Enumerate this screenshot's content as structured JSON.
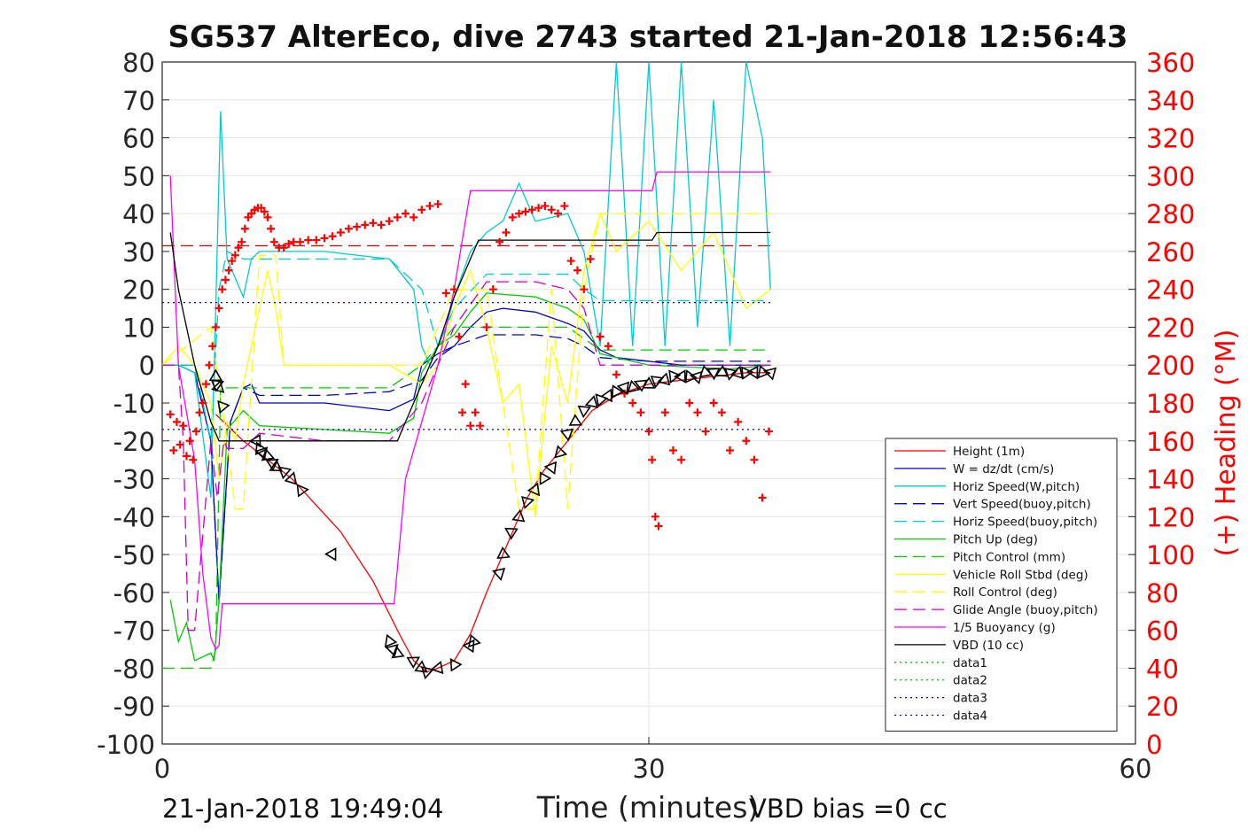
{
  "chart_data": {
    "type": "line",
    "title": "SG537 AlterEco, dive 2743 started 21-Jan-2018 12:56:43",
    "xlabel": "Time (minutes)",
    "ylabel": "",
    "y2label": "(+) Heading (°M)",
    "xlim": [
      0,
      60
    ],
    "ylim": [
      -100,
      80
    ],
    "y2lim": [
      0,
      360
    ],
    "xticks": [
      "0",
      "30",
      "60"
    ],
    "yticks": [
      "80",
      "70",
      "60",
      "50",
      "40",
      "30",
      "20",
      "10",
      "0",
      "-10",
      "-20",
      "-30",
      "-40",
      "-50",
      "-60",
      "-70",
      "-80",
      "-90",
      "-100"
    ],
    "y2ticks": [
      "360",
      "340",
      "320",
      "300",
      "280",
      "260",
      "240",
      "220",
      "200",
      "180",
      "160",
      "140",
      "120",
      "100",
      "80",
      "60",
      "40",
      "20",
      "0"
    ],
    "grid": true,
    "legend_position": "bottom-right",
    "series": [
      {
        "name": "Height (1m)",
        "color": "#ff0000",
        "dash": "solid",
        "x": [
          3.3,
          5,
          8,
          11,
          13,
          14.5,
          15.5,
          16.3,
          17,
          18,
          19,
          20,
          21.5,
          22.5,
          23.5,
          25,
          26.5,
          28,
          30,
          32,
          34,
          36,
          37.5
        ],
        "y": [
          -13,
          -20,
          -30,
          -44,
          -57,
          -70,
          -78,
          -81,
          -80,
          -78,
          -71,
          -60,
          -45,
          -35,
          -28,
          -20,
          -12,
          -8,
          -5,
          -4,
          -3,
          -2,
          -2
        ]
      },
      {
        "name": "W = dz/dt (cm/s)",
        "color": "#0000cc",
        "dash": "solid",
        "x": [
          0,
          1,
          2,
          3,
          3.5,
          4.2,
          5,
          5.5,
          6,
          10,
          14,
          15.5,
          16,
          17,
          18,
          19,
          20,
          21,
          23,
          25,
          26,
          27,
          28,
          30,
          32,
          35,
          37.5
        ],
        "y": [
          0,
          0,
          -2,
          -20,
          -62,
          -15,
          -6,
          -5,
          -10,
          -10,
          -12,
          -9,
          0,
          3,
          5,
          10,
          14,
          15,
          14,
          11,
          9,
          4,
          2,
          1,
          0,
          0,
          0
        ]
      },
      {
        "name": "Horiz Speed(W,pitch)",
        "color": "#00cccc",
        "dash": "solid",
        "x": [
          0,
          1,
          2,
          3,
          3.3,
          3.6,
          4,
          5,
          5.5,
          6,
          10,
          14,
          15.5,
          16,
          16.5,
          17.5,
          18,
          19,
          20,
          21,
          22,
          23,
          25,
          26,
          27,
          28,
          29,
          30,
          31,
          32,
          33,
          34,
          35,
          36,
          37,
          37.5
        ],
        "y": [
          0,
          0,
          -2,
          -35,
          15,
          67,
          28,
          18,
          28,
          30,
          30,
          28,
          20,
          5,
          0,
          10,
          18,
          30,
          35,
          38,
          48,
          38,
          40,
          30,
          5,
          80,
          5,
          80,
          5,
          80,
          10,
          70,
          5,
          80,
          60,
          20
        ]
      },
      {
        "name": "Vert Speed(buoy,pitch)",
        "color": "#0000cc",
        "dash": "long",
        "x": [
          0,
          2,
          3,
          3.5,
          4.2,
          5,
          6,
          10,
          14,
          16,
          17,
          18,
          20,
          23,
          25,
          26,
          27,
          30,
          37.5
        ],
        "y": [
          0,
          0,
          -20,
          -63,
          -15,
          -6,
          -8,
          -8,
          -7,
          -4,
          2,
          5,
          8,
          8,
          7,
          5,
          2,
          1,
          1
        ]
      },
      {
        "name": "Horiz Speed(buoy,pitch)",
        "color": "#00cccc",
        "dash": "long",
        "x": [
          0,
          2,
          3,
          3.5,
          4,
          5,
          6,
          10,
          14,
          16,
          17,
          18,
          20,
          23,
          25,
          26,
          27,
          37.5
        ],
        "y": [
          0,
          0,
          -20,
          20,
          30,
          28,
          28,
          28,
          28,
          20,
          5,
          15,
          24,
          24,
          24,
          20,
          17,
          17
        ]
      },
      {
        "name": "Pitch Up (deg)",
        "color": "#00cc00",
        "dash": "solid",
        "x": [
          0.5,
          1,
          1.5,
          2,
          2.5,
          3,
          3.2,
          3.5,
          4,
          5,
          6,
          10,
          14,
          15.5,
          16,
          17,
          18,
          19,
          20,
          23,
          25,
          26,
          27,
          30,
          35,
          37.5
        ],
        "y": [
          -62,
          -73,
          -68,
          -78,
          -77,
          -76,
          -78,
          -62,
          -17,
          -12,
          -16,
          -17,
          -18,
          -14,
          -2,
          5,
          8,
          14,
          19,
          18,
          15,
          12,
          3,
          0,
          -1,
          0
        ]
      },
      {
        "name": "Pitch Control (mm)",
        "color": "#00cc00",
        "dash": "long",
        "x": [
          0,
          3,
          3.3,
          3.6,
          5,
          6,
          10,
          14,
          16,
          18,
          20,
          25,
          27,
          37.5
        ],
        "y": [
          -80,
          -80,
          -75,
          -6,
          -6,
          -6,
          -6,
          -6,
          0,
          10,
          10,
          10,
          4,
          4
        ]
      },
      {
        "name": "Vehicle Roll Stbd (deg)",
        "color": "#ffff00",
        "dash": "solid",
        "x": [
          0,
          1,
          2,
          3,
          3.5,
          4,
          4.5,
          5,
          6,
          6.5,
          7,
          7.5,
          8,
          10,
          14,
          16,
          17,
          18,
          19,
          20,
          21,
          22,
          23,
          24,
          25,
          26,
          27,
          28,
          30,
          32,
          34,
          36,
          37.5
        ],
        "y": [
          0,
          5,
          0,
          -10,
          -30,
          -15,
          -20,
          -5,
          15,
          25,
          15,
          0,
          0,
          0,
          0,
          -5,
          0,
          15,
          25,
          10,
          -10,
          -5,
          -40,
          5,
          -10,
          25,
          40,
          30,
          38,
          25,
          35,
          15,
          20
        ]
      },
      {
        "name": "Roll Control (deg)",
        "color": "#ffff00",
        "dash": "long",
        "x": [
          0,
          3,
          4,
          4.5,
          5,
          6,
          7,
          7.5,
          8,
          14,
          16,
          18,
          20,
          21,
          22,
          23,
          24,
          25,
          26,
          27,
          30,
          37.5
        ],
        "y": [
          0,
          10,
          -20,
          -38,
          -38,
          29,
          29,
          0,
          0,
          0,
          0,
          20,
          20,
          -10,
          -38,
          -38,
          20,
          -38,
          20,
          40,
          40,
          40
        ]
      },
      {
        "name": "Glide Angle (buoy,pitch)",
        "color": "#cc00cc",
        "dash": "long",
        "x": [
          0,
          1,
          1.3,
          1.6,
          2,
          3,
          3.4,
          3.8,
          4,
          5,
          6,
          10,
          14,
          16,
          17,
          18,
          20,
          23,
          25,
          26,
          27,
          37.5
        ],
        "y": [
          0,
          0,
          -20,
          -70,
          -70,
          -20,
          -35,
          -20,
          -22,
          -22,
          -18,
          -20,
          -20,
          -10,
          0,
          10,
          22,
          22,
          20,
          15,
          0,
          0
        ]
      },
      {
        "name": "1/5 Buoyancy (g)",
        "color": "#ff00ff",
        "dash": "solid",
        "x": [
          0.5,
          1,
          2,
          2.5,
          2.8,
          3,
          3.3,
          3.5,
          3.7,
          10,
          14,
          14.3,
          15,
          17,
          18,
          19,
          30,
          30.2,
          30.5,
          37.5
        ],
        "y": [
          50,
          0,
          -25,
          -55,
          -65,
          -72,
          -75,
          -74,
          -63,
          -63,
          -63,
          -63,
          -30,
          0,
          20,
          46,
          46,
          46,
          51,
          51
        ]
      },
      {
        "name": "VBD (10 cc)",
        "color": "#000000",
        "dash": "solid",
        "x": [
          0.5,
          1,
          2,
          3,
          3.5,
          10,
          14.5,
          15,
          16,
          17,
          18,
          19,
          19.5,
          30,
          30.2,
          30.5,
          37.5
        ],
        "y": [
          35,
          20,
          0,
          -15,
          -20,
          -20,
          -20,
          -15,
          -5,
          5,
          18,
          28,
          33,
          33,
          33,
          35,
          35
        ]
      },
      {
        "name": "data1",
        "color": "#00cc00",
        "dash": "dotted",
        "x": [],
        "y": []
      },
      {
        "name": "data2",
        "color": "#00cc00",
        "dash": "dotted",
        "x": [],
        "y": []
      },
      {
        "name": "data3",
        "color": "#0000cc",
        "dash": "dotted",
        "x": [
          0,
          37.5
        ],
        "y": [
          16.5,
          16.5
        ]
      },
      {
        "name": "data4",
        "color": "#0000cc",
        "dash": "dotted",
        "x": [
          0,
          37.5
        ],
        "y": [
          -17,
          -17
        ]
      }
    ],
    "reference_lines": [
      {
        "color": "#cc0000",
        "dash": "long",
        "x": [
          0,
          37.5
        ],
        "y": [
          31.5,
          31.5
        ]
      }
    ],
    "heading": {
      "color": "#ff0000",
      "marker": "+",
      "x": [
        0.5,
        0.7,
        0.9,
        1.1,
        1.3,
        1.5,
        1.7,
        1.9,
        2.1,
        2.3,
        2.5,
        2.7,
        2.9,
        3.1,
        3.3,
        3.5,
        3.7,
        3.9,
        4.1,
        4.3,
        4.5,
        4.7,
        4.9,
        5.1,
        5.3,
        5.5,
        5.7,
        5.9,
        6.1,
        6.3,
        6.5,
        6.7,
        6.9,
        7.2,
        7.5,
        7.8,
        8.1,
        8.5,
        9,
        9.5,
        10,
        10.5,
        11,
        11.5,
        12,
        12.5,
        13,
        13.5,
        14,
        14.5,
        15,
        15.5,
        16,
        16.5,
        17,
        17.5,
        18,
        18.3,
        18.5,
        18.7,
        19,
        19.3,
        19.6,
        20,
        20.4,
        20.8,
        21.2,
        21.6,
        22,
        22.4,
        22.8,
        23.2,
        23.6,
        24,
        24.4,
        24.8,
        25.2,
        25.6,
        26,
        26.4,
        27,
        27.5,
        28,
        28.5,
        29,
        29.5,
        30,
        30.2,
        30.4,
        30.6,
        31,
        31.5,
        32,
        32.5,
        33,
        33.5,
        34,
        34.5,
        35,
        35.5,
        36,
        36.5,
        37,
        37.4
      ],
      "y": [
        174,
        155,
        170,
        158,
        168,
        152,
        160,
        150,
        165,
        175,
        180,
        190,
        200,
        210,
        220,
        230,
        240,
        245,
        250,
        255,
        258,
        262,
        265,
        272,
        278,
        280,
        282,
        283,
        283,
        281,
        278,
        272,
        265,
        262,
        262,
        264,
        265,
        265,
        266,
        266,
        267,
        268,
        270,
        272,
        273,
        274,
        275,
        274,
        276,
        278,
        280,
        278,
        282,
        284,
        285,
        238,
        240,
        215,
        175,
        190,
        168,
        175,
        168,
        220,
        240,
        265,
        270,
        278,
        280,
        281,
        282,
        283,
        284,
        282,
        280,
        284,
        255,
        250,
        240,
        256,
        215,
        210,
        195,
        185,
        180,
        175,
        165,
        150,
        120,
        115,
        175,
        155,
        150,
        180,
        175,
        165,
        180,
        175,
        155,
        170,
        160,
        150,
        130,
        165
      ]
    },
    "markers": {
      "color": "#000000",
      "symbol": "triangle",
      "x": [
        3.3,
        3.4,
        3.5,
        3.7,
        5.8,
        6.0,
        6.2,
        6.5,
        6.8,
        7.0,
        7.5,
        8.0,
        8.6,
        10.5,
        14.0,
        14.2,
        14.5,
        15.5,
        16.0,
        16.3,
        17.0,
        18.0,
        19.0,
        19.2,
        20.8,
        21.0,
        21.5,
        22.0,
        22.5,
        23.0,
        23.5,
        24.0,
        24.5,
        25.0,
        25.5,
        26.0,
        26.5,
        27.0,
        27.5,
        28.0,
        28.5,
        29.0,
        29.5,
        30.0,
        30.5,
        31.0,
        31.5,
        32.0,
        32.5,
        33.0,
        33.5,
        34.0,
        34.5,
        35.0,
        35.5,
        36.0,
        36.5,
        37.0,
        37.5
      ],
      "y": [
        -3,
        -5,
        -6,
        -11,
        -20,
        -22,
        -23,
        -24,
        -26,
        -27,
        -28,
        -30,
        -33,
        -50,
        -73,
        -75,
        -76,
        -78,
        -80,
        -81,
        -80,
        -79,
        -74,
        -73,
        -55,
        -50,
        -44,
        -40,
        -36,
        -33,
        -30,
        -27,
        -23,
        -18,
        -15,
        -12,
        -10,
        -9,
        -8,
        -7,
        -6,
        -6,
        -5,
        -5,
        -4,
        -4,
        -3,
        -3,
        -3,
        -3,
        -2,
        -2,
        -2,
        -2,
        -2,
        -2,
        -2,
        -2,
        -2
      ]
    },
    "footer_left": "21-Jan-2018 19:49:04",
    "footer_right": "VBD bias =0 cc"
  }
}
